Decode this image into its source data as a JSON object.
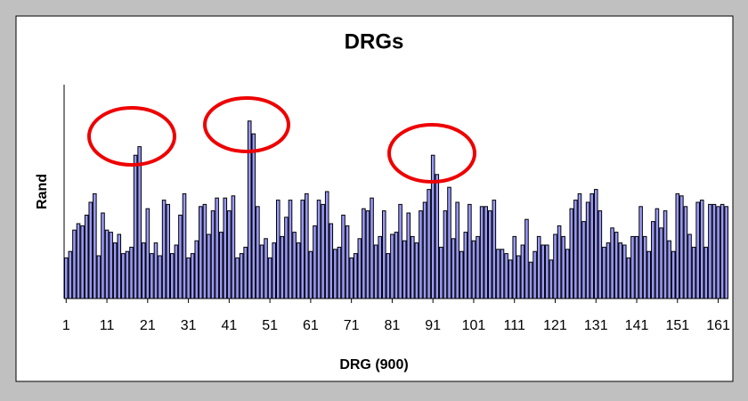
{
  "chart_data": {
    "type": "bar",
    "title": "DRGs",
    "x_label": "DRG (900)",
    "y_label": "Rand",
    "x": [
      1,
      2,
      3,
      4,
      5,
      6,
      7,
      8,
      9,
      10,
      11,
      12,
      13,
      14,
      15,
      16,
      17,
      18,
      19,
      20,
      21,
      22,
      23,
      24,
      25,
      26,
      27,
      28,
      29,
      30,
      31,
      32,
      33,
      34,
      35,
      36,
      37,
      38,
      39,
      40,
      41,
      42,
      43,
      44,
      45,
      46,
      47,
      48,
      49,
      50,
      51,
      52,
      53,
      54,
      55,
      56,
      57,
      58,
      59,
      60,
      61,
      62,
      63,
      64,
      65,
      66,
      67,
      68,
      69,
      70,
      71,
      72,
      73,
      74,
      75,
      76,
      77,
      78,
      79,
      80,
      81,
      82,
      83,
      84,
      85,
      86,
      87,
      88,
      89,
      90,
      91,
      92,
      93,
      94,
      95,
      96,
      97,
      98,
      99,
      100,
      101,
      102,
      103,
      104,
      105,
      106,
      107,
      108,
      109,
      110,
      111,
      112,
      113,
      114,
      115,
      116,
      117,
      118,
      119,
      120,
      121,
      122,
      123,
      124,
      125,
      126,
      127,
      128,
      129,
      130,
      131,
      132,
      133,
      134,
      135,
      136,
      137,
      138,
      139,
      140,
      141,
      142,
      143,
      144,
      145,
      146,
      147,
      148,
      149,
      150,
      151,
      152,
      153,
      154,
      155,
      156,
      157,
      158,
      159,
      160,
      161,
      162,
      163
    ],
    "values": [
      19,
      22,
      32,
      35,
      34,
      39,
      45,
      49,
      20,
      40,
      32,
      31,
      26,
      30,
      21,
      22,
      24,
      67,
      71,
      26,
      42,
      21,
      26,
      20,
      46,
      44,
      21,
      25,
      39,
      49,
      19,
      21,
      27,
      43,
      44,
      30,
      41,
      47,
      31,
      47,
      41,
      48,
      19,
      21,
      24,
      83,
      77,
      43,
      25,
      28,
      19,
      26,
      46,
      29,
      38,
      46,
      31,
      26,
      46,
      49,
      22,
      34,
      46,
      44,
      50,
      35,
      23,
      24,
      39,
      34,
      19,
      21,
      28,
      42,
      41,
      47,
      25,
      29,
      41,
      21,
      30,
      31,
      44,
      27,
      40,
      29,
      26,
      41,
      45,
      51,
      67,
      58,
      24,
      41,
      52,
      28,
      45,
      22,
      31,
      44,
      27,
      29,
      43,
      43,
      41,
      46,
      23,
      23,
      21,
      18,
      29,
      20,
      25,
      37,
      17,
      22,
      29,
      25,
      25,
      18,
      30,
      34,
      29,
      23,
      42,
      46,
      49,
      36,
      45,
      49,
      51,
      41,
      24,
      26,
      33,
      31,
      26,
      25,
      19,
      29,
      29,
      43,
      29,
      22,
      36,
      42,
      33,
      41,
      27,
      22,
      49,
      48,
      43,
      30,
      24,
      45,
      46,
      24,
      44,
      44,
      43,
      44,
      43
    ],
    "color": "#9999ff",
    "xlim": [
      0.5,
      163.5
    ],
    "xticks": [
      1,
      11,
      21,
      31,
      41,
      51,
      61,
      71,
      81,
      91,
      101,
      111,
      121,
      131,
      141,
      151,
      161
    ],
    "ylim": [
      0,
      100
    ]
  }
}
